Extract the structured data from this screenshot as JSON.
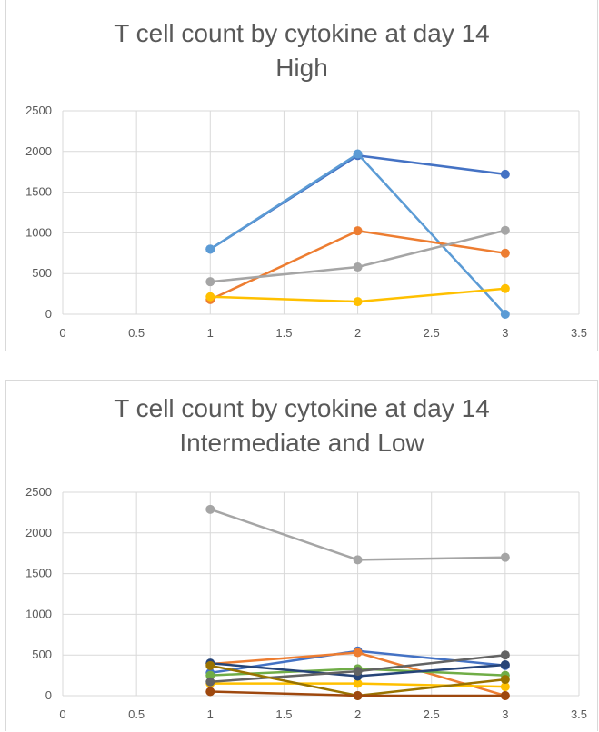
{
  "chart_data": [
    {
      "type": "line",
      "title": "T cell count by cytokine at day 14",
      "subtitle": "High",
      "xlim": [
        0,
        3.5
      ],
      "ylim": [
        0,
        2500
      ],
      "xticks": [
        "0",
        "0.5",
        "1",
        "1.5",
        "2",
        "2.5",
        "3",
        "3.5"
      ],
      "yticks": [
        "0",
        "500",
        "1000",
        "1500",
        "2000",
        "2500"
      ],
      "grid": true,
      "x": [
        1,
        2,
        3
      ],
      "series": [
        {
          "color": "#4472C4",
          "values": [
            800,
            1950,
            1720
          ]
        },
        {
          "color": "#5B9BD5",
          "values": [
            800,
            1970,
            0
          ]
        },
        {
          "color": "#ED7D31",
          "values": [
            180,
            1025,
            750
          ]
        },
        {
          "color": "#A5A5A5",
          "values": [
            400,
            580,
            1030
          ]
        },
        {
          "color": "#FFC000",
          "values": [
            215,
            155,
            315
          ]
        }
      ]
    },
    {
      "type": "line",
      "title": "T cell count by cytokine at day 14",
      "subtitle": "Intermediate and Low",
      "xlim": [
        0,
        3.5
      ],
      "ylim": [
        0,
        2500
      ],
      "xticks": [
        "0",
        "0.5",
        "1",
        "1.5",
        "2",
        "2.5",
        "3",
        "3.5"
      ],
      "yticks": [
        "0",
        "500",
        "1000",
        "1500",
        "2000",
        "2500"
      ],
      "grid": true,
      "x": [
        1,
        2,
        3
      ],
      "series": [
        {
          "color": "#A5A5A5",
          "values": [
            2290,
            1670,
            1700
          ]
        },
        {
          "color": "#4472C4",
          "values": [
            280,
            550,
            370
          ]
        },
        {
          "color": "#ED7D31",
          "values": [
            390,
            530,
            0
          ]
        },
        {
          "color": "#70AD47",
          "values": [
            250,
            330,
            250
          ]
        },
        {
          "color": "#FFC000",
          "values": [
            150,
            150,
            110
          ]
        },
        {
          "color": "#264478",
          "values": [
            400,
            240,
            380
          ]
        },
        {
          "color": "#636363",
          "values": [
            170,
            300,
            500
          ]
        },
        {
          "color": "#997300",
          "values": [
            370,
            0,
            200
          ]
        },
        {
          "color": "#9E480E",
          "values": [
            50,
            0,
            0
          ]
        }
      ]
    }
  ]
}
